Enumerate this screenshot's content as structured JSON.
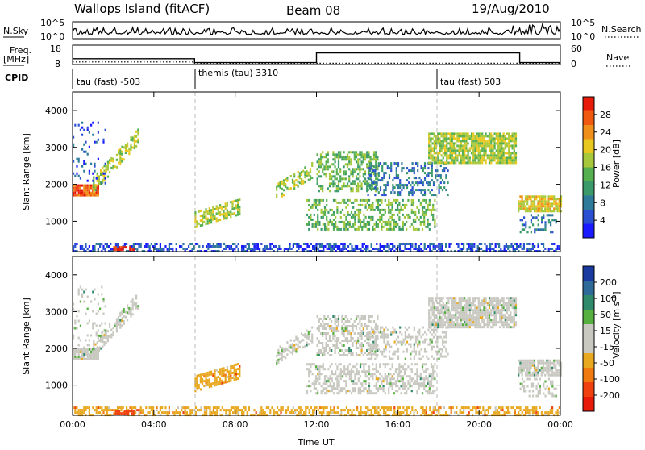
{
  "header": {
    "site": "Wallops Island (fitACF)",
    "beam": "Beam 08",
    "date": "19/Aug/2010"
  },
  "noise_panel": {
    "left_label": "N.Sky",
    "left_ticks": [
      "10^5",
      "10^0"
    ],
    "right_ticks": [
      "10^5",
      "10^0"
    ],
    "right_label": "N.Search"
  },
  "freq_panel": {
    "left_label_1": "Freq.",
    "left_label_2": "[MHz]",
    "left_ticks": [
      "18",
      "8"
    ],
    "right_ticks": [
      "60",
      "0"
    ],
    "right_label": "Nave"
  },
  "cpid_panel": {
    "label": "CPID",
    "segments": [
      {
        "start_hour": 0,
        "text": "tau (fast) -503"
      },
      {
        "start_hour": 6,
        "text": "themis (tau) 3310"
      },
      {
        "start_hour": 18,
        "text": "tau (fast) 503"
      }
    ]
  },
  "colors": {
    "power_scale": [
      "#1a1aff",
      "#2a4fd0",
      "#2e7a9a",
      "#3a9a6a",
      "#56b050",
      "#a6c83a",
      "#e8c820",
      "#f0901a",
      "#f05a10",
      "#e81a0a"
    ],
    "velocity_scale": [
      "#1a3aa0",
      "#2e6a98",
      "#2e8a6a",
      "#56b040",
      "#c8c8c0",
      "#c8c8c0",
      "#e8a820",
      "#f07a10",
      "#f04010",
      "#e81a0a"
    ]
  },
  "chart_data": [
    {
      "type": "heatmap",
      "title": "Power",
      "ylabel": "Slant Range [km]",
      "xlabel": "",
      "x_ticks": [
        "00:00",
        "04:00",
        "08:00",
        "12:00",
        "16:00",
        "20:00",
        "00:00"
      ],
      "xlim_hours": [
        0,
        24
      ],
      "y_ticks": [
        1000,
        2000,
        3000,
        4000
      ],
      "ylim_km": [
        180,
        4500
      ],
      "colorbar_label": "Power [dB]",
      "colorbar_ticks": [
        4,
        8,
        12,
        16,
        20,
        24,
        28
      ],
      "colorbar_range": [
        0,
        30
      ]
    },
    {
      "type": "heatmap",
      "title": "Velocity",
      "ylabel": "Slant Range [km]",
      "xlabel": "Time UT",
      "x_ticks": [
        "00:00",
        "04:00",
        "08:00",
        "12:00",
        "16:00",
        "20:00",
        "00:00"
      ],
      "xlim_hours": [
        0,
        24
      ],
      "y_ticks": [
        1000,
        2000,
        3000,
        4000
      ],
      "ylim_km": [
        180,
        4500
      ],
      "colorbar_label": "Velocity [m s",
      "colorbar_label_sup": "-1",
      "colorbar_label_end": "]",
      "colorbar_ticks": [
        "200",
        "100",
        "50",
        "15",
        "-15",
        "-50",
        "-100",
        "-200"
      ]
    }
  ]
}
